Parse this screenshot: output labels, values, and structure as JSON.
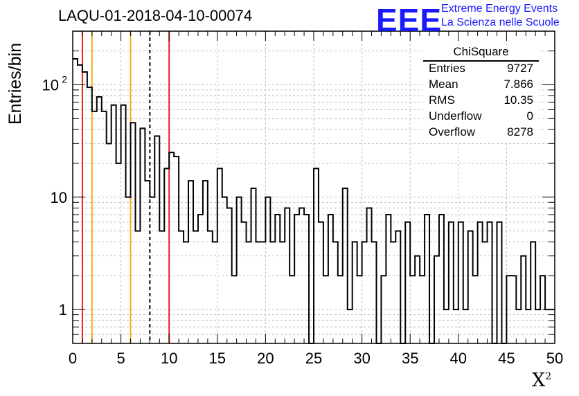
{
  "header": {
    "title": "LAQU-01-2018-04-10-00074",
    "logo_text": "EEE",
    "brand_line1": "Extreme Energy Events",
    "brand_line2": "La Scienza nelle Scuole"
  },
  "stats_box": {
    "title": "ChiSquare",
    "rows": [
      {
        "label": "Entries",
        "value": "9727"
      },
      {
        "label": "Mean",
        "value": "7.866"
      },
      {
        "label": "RMS",
        "value": "10.35"
      },
      {
        "label": "Underflow",
        "value": "0"
      },
      {
        "label": "Overflow",
        "value": "8278"
      }
    ]
  },
  "colors": {
    "logo": "#1a1aff",
    "histogram": "#000000",
    "red_line": "#e8201a",
    "orange_line": "#f0b020",
    "dashed_line": "#000000",
    "grid": "#bdbdbd"
  },
  "chart_data": {
    "type": "bar",
    "style": "step-histogram",
    "xlabel": "X",
    "xlabel_superscript": "2",
    "ylabel": "Entries/bin",
    "xlim": [
      0,
      50
    ],
    "ylim": [
      0.5,
      300
    ],
    "yscale": "log",
    "grid": true,
    "bin_width": 0.5,
    "x_ticks": [
      0,
      5,
      10,
      15,
      20,
      25,
      30,
      35,
      40,
      45,
      50
    ],
    "y_ticks": [
      {
        "value": 1,
        "label": "1"
      },
      {
        "value": 10,
        "label": "10"
      },
      {
        "value": 100,
        "label": "10",
        "exponent": "2"
      }
    ],
    "values": [
      170,
      150,
      130,
      95,
      58,
      78,
      58,
      30,
      66,
      20,
      66,
      10,
      46,
      5,
      41,
      14,
      10,
      35,
      5,
      18,
      25,
      23,
      5,
      4,
      14,
      5,
      7,
      14,
      5,
      4,
      18,
      10,
      8,
      2,
      10,
      6,
      4,
      12,
      4,
      4,
      10,
      4,
      7,
      4,
      8,
      2,
      7,
      8,
      7,
      0,
      18,
      6,
      2,
      7,
      4,
      2,
      12,
      1,
      4,
      2,
      4,
      8,
      4,
      0,
      2,
      7,
      4,
      5,
      0,
      6,
      2,
      3,
      2,
      7,
      0,
      3,
      7,
      1,
      6,
      1,
      6,
      1,
      5,
      2,
      6,
      4,
      6,
      0,
      6,
      0,
      2,
      2,
      1,
      3,
      1,
      4,
      1,
      2,
      1,
      1
    ],
    "vertical_lines": [
      {
        "x": 1,
        "style": "red"
      },
      {
        "x": 2,
        "style": "orange"
      },
      {
        "x": 6,
        "style": "orange"
      },
      {
        "x": 8,
        "style": "dashed"
      },
      {
        "x": 10,
        "style": "red"
      }
    ]
  }
}
